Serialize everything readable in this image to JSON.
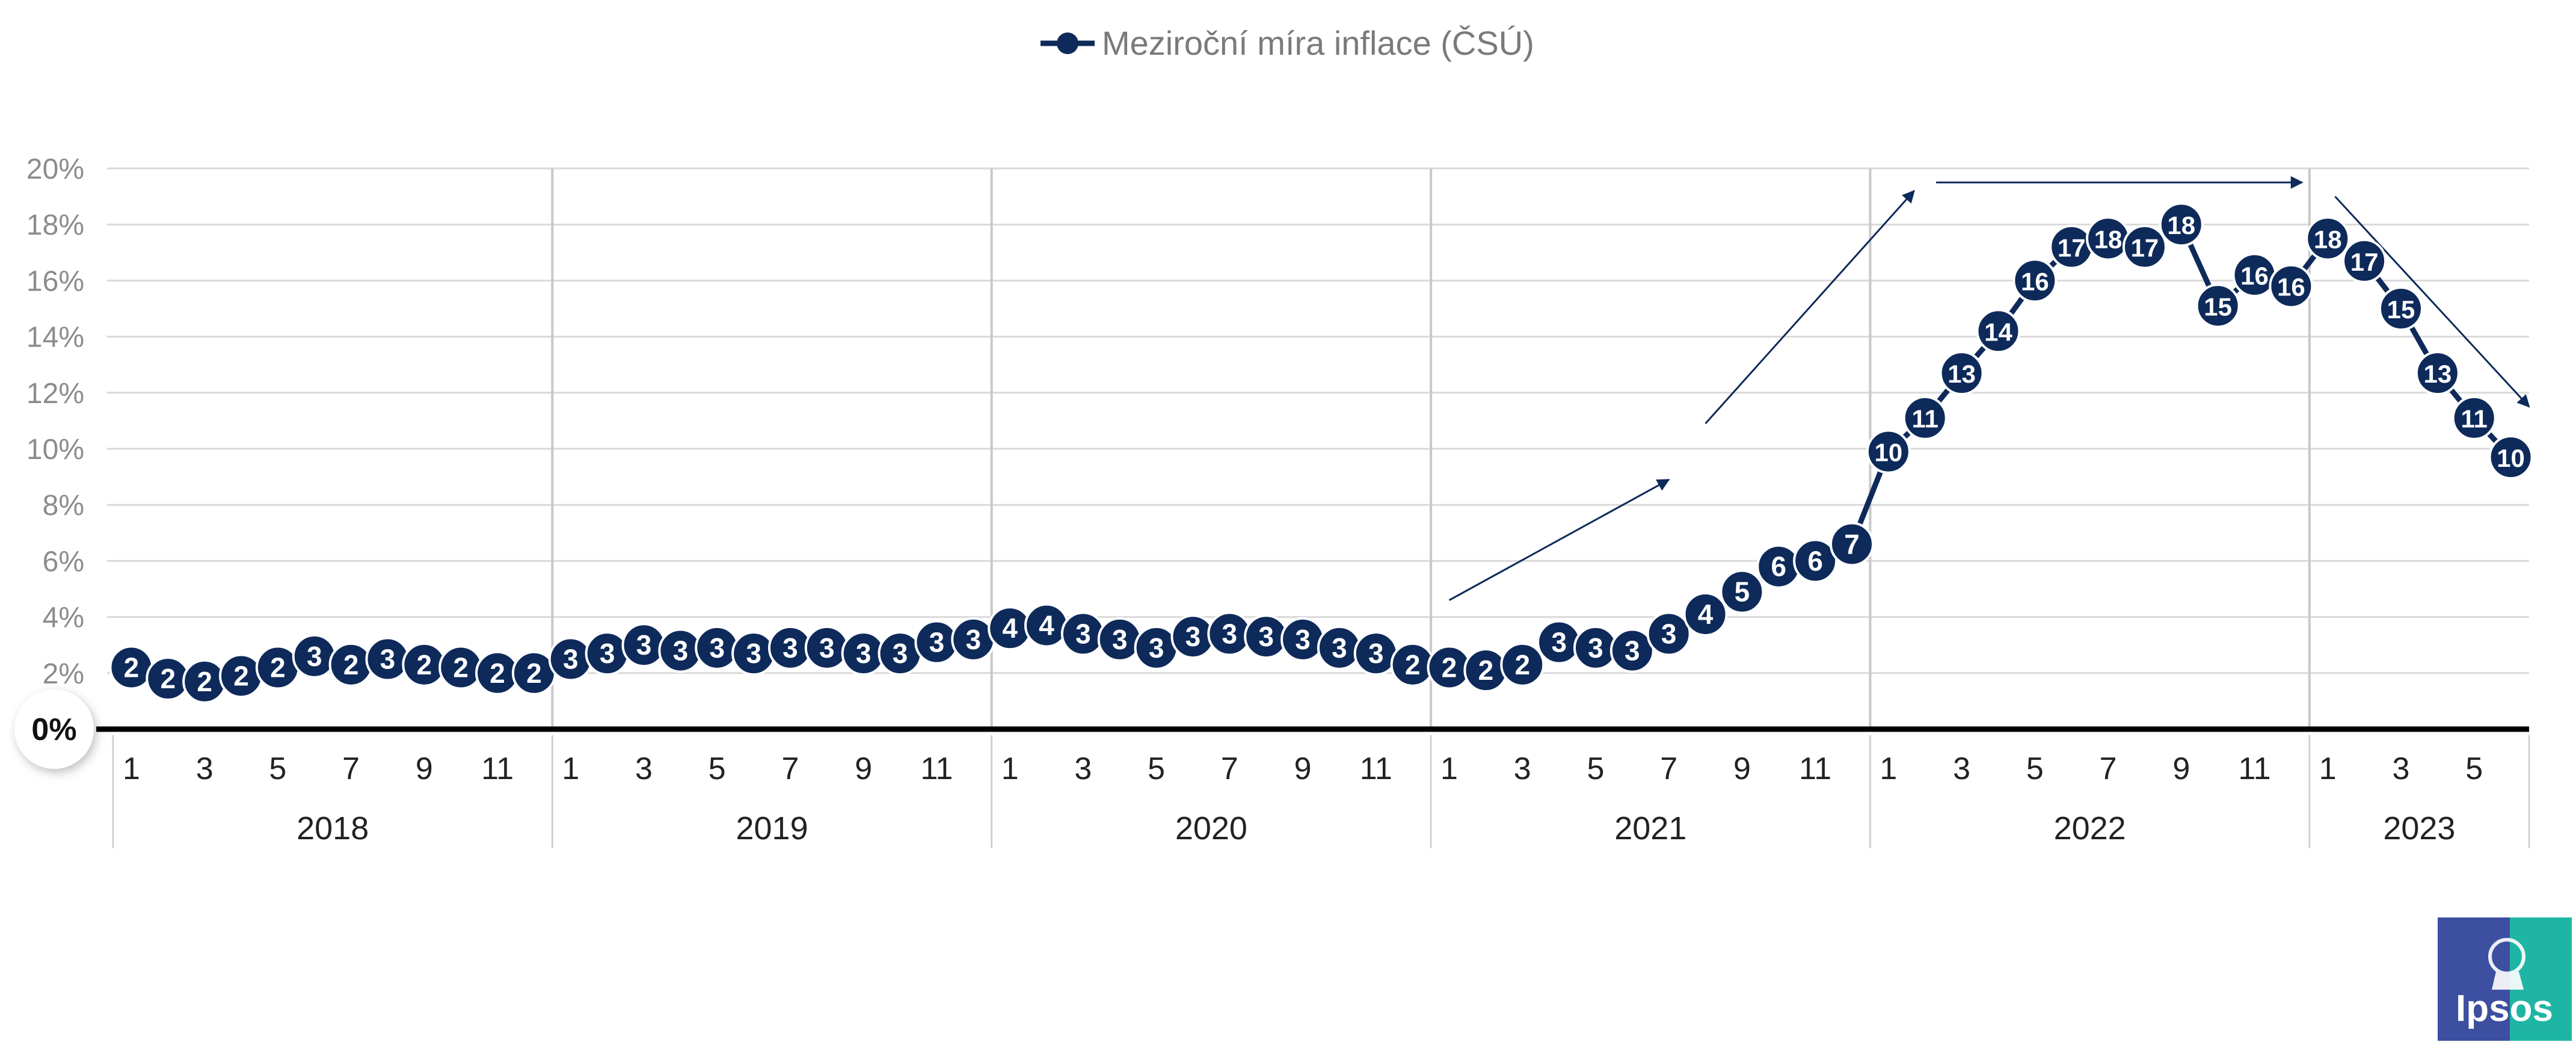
{
  "legend": {
    "label": "Meziroční míra inflace (ČSÚ)"
  },
  "logo": {
    "text": "Ipsos"
  },
  "colors": {
    "series": "#0e2a5a",
    "grid": "#d9d9d9",
    "axis": "#000000",
    "year_divider": "#c8c8c8",
    "logo_left": "#3d4fa0",
    "logo_right": "#1fb5a5"
  },
  "chart_data": {
    "type": "line",
    "title": "",
    "xlabel": "",
    "ylabel": "",
    "ylim": [
      0,
      20
    ],
    "y_ticks": [
      "0%",
      "2%",
      "4%",
      "6%",
      "8%",
      "10%",
      "12%",
      "14%",
      "16%",
      "18%",
      "20%"
    ],
    "grid": true,
    "legend_position": "top-center",
    "years": [
      {
        "label": "2018",
        "months": 12
      },
      {
        "label": "2019",
        "months": 12
      },
      {
        "label": "2020",
        "months": 12
      },
      {
        "label": "2021",
        "months": 12
      },
      {
        "label": "2022",
        "months": 12
      },
      {
        "label": "2023",
        "months": 6
      }
    ],
    "month_tick_labels": [
      "1",
      "",
      "3",
      "",
      "5",
      "",
      "7",
      "",
      "9",
      "",
      "11",
      ""
    ],
    "series": [
      {
        "name": "Meziroční míra inflace (ČSÚ)",
        "values": [
          2.2,
          1.8,
          1.7,
          1.9,
          2.2,
          2.6,
          2.3,
          2.5,
          2.3,
          2.2,
          2.0,
          2.0,
          2.5,
          2.7,
          3.0,
          2.8,
          2.9,
          2.7,
          2.9,
          2.9,
          2.7,
          2.7,
          3.1,
          3.2,
          3.6,
          3.7,
          3.4,
          3.2,
          2.9,
          3.3,
          3.4,
          3.3,
          3.2,
          2.9,
          2.7,
          2.3,
          2.2,
          2.1,
          2.3,
          3.1,
          2.9,
          2.8,
          3.4,
          4.1,
          4.9,
          5.8,
          6.0,
          6.6,
          9.9,
          11.1,
          12.7,
          14.2,
          16.0,
          17.2,
          17.5,
          17.2,
          18.0,
          15.1,
          16.2,
          15.8,
          17.5,
          16.7,
          15.0,
          12.7,
          11.1,
          9.7
        ],
        "labels": [
          "2",
          "2",
          "2",
          "2",
          "2",
          "3",
          "2",
          "3",
          "2",
          "2",
          "2",
          "2",
          "3",
          "3",
          "3",
          "3",
          "3",
          "3",
          "3",
          "3",
          "3",
          "3",
          "3",
          "3",
          "4",
          "4",
          "3",
          "3",
          "3",
          "3",
          "3",
          "3",
          "3",
          "3",
          "3",
          "2",
          "2",
          "2",
          "2",
          "3",
          "3",
          "3",
          "3",
          "4",
          "5",
          "6",
          "6",
          "7",
          "10",
          "11",
          "13",
          "14",
          "16",
          "17",
          "18",
          "17",
          "18",
          "15",
          "16",
          "16",
          "18",
          "17",
          "15",
          "13",
          "11",
          "10"
        ]
      }
    ],
    "trend_arrows": [
      {
        "from": {
          "index": 36,
          "value": 4.6
        },
        "to": {
          "index": 42,
          "value": 8.9
        }
      },
      {
        "from": {
          "index": 43,
          "value": 10.9
        },
        "to": {
          "index": 48.7,
          "value": 19.2
        }
      },
      {
        "from": {
          "index": 49.3,
          "value": 19.5
        },
        "to": {
          "index": 59.3,
          "value": 19.5
        }
      },
      {
        "from": {
          "index": 60.2,
          "value": 19.0
        },
        "to": {
          "index": 65.5,
          "value": 11.5
        }
      }
    ]
  }
}
